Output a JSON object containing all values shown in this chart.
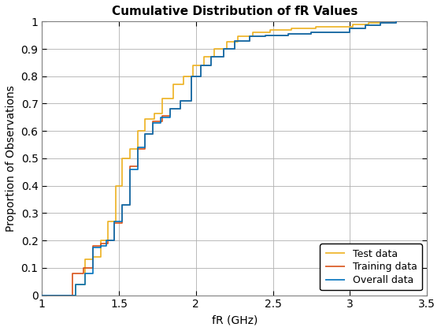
{
  "title": "Cumulative Distribution of fR Values",
  "xlabel": "fR (GHz)",
  "ylabel": "Proportion of Observations",
  "xlim": [
    1.0,
    3.5
  ],
  "ylim": [
    0.0,
    1.0
  ],
  "xticks": [
    1.0,
    1.5,
    2.0,
    2.5,
    3.0,
    3.5
  ],
  "xticklabels": [
    "1",
    "1.5",
    "2",
    "2.5",
    "3",
    "3.5"
  ],
  "yticks": [
    0.0,
    0.1,
    0.2,
    0.3,
    0.4,
    0.5,
    0.6,
    0.7,
    0.8,
    0.9,
    1.0
  ],
  "yticklabels": [
    "0",
    "0.1",
    "0.2",
    "0.3",
    "0.4",
    "0.5",
    "0.6",
    "0.7",
    "0.8",
    "0.9",
    "1"
  ],
  "overall_color": "#0072BD",
  "training_color": "#D95319",
  "test_color": "#EDB120",
  "legend_labels": [
    "Overall data",
    "Training data",
    "Test data"
  ],
  "overall_x": [
    1.0,
    1.22,
    1.22,
    1.28,
    1.28,
    1.33,
    1.33,
    1.38,
    1.38,
    1.42,
    1.42,
    1.47,
    1.47,
    1.52,
    1.52,
    1.57,
    1.57,
    1.62,
    1.62,
    1.67,
    1.67,
    1.72,
    1.72,
    1.77,
    1.77,
    1.83,
    1.83,
    1.9,
    1.9,
    1.97,
    1.97,
    2.03,
    2.03,
    2.1,
    2.1,
    2.18,
    2.18,
    2.25,
    2.25,
    2.35,
    2.35,
    2.45,
    2.45,
    2.6,
    2.6,
    2.75,
    2.75,
    3.0,
    3.0,
    3.1,
    3.1,
    3.2,
    3.2,
    3.3,
    3.3
  ],
  "overall_y": [
    0.0,
    0.0,
    0.04,
    0.04,
    0.08,
    0.08,
    0.175,
    0.175,
    0.18,
    0.18,
    0.2,
    0.2,
    0.27,
    0.27,
    0.33,
    0.33,
    0.46,
    0.46,
    0.54,
    0.54,
    0.59,
    0.59,
    0.63,
    0.63,
    0.65,
    0.65,
    0.68,
    0.68,
    0.71,
    0.71,
    0.8,
    0.8,
    0.84,
    0.84,
    0.87,
    0.87,
    0.9,
    0.9,
    0.93,
    0.93,
    0.945,
    0.945,
    0.95,
    0.95,
    0.955,
    0.955,
    0.96,
    0.96,
    0.975,
    0.975,
    0.985,
    0.985,
    0.995,
    0.995,
    1.0
  ],
  "training_x": [
    1.0,
    1.2,
    1.2,
    1.27,
    1.27,
    1.33,
    1.33,
    1.38,
    1.38,
    1.43,
    1.43,
    1.47,
    1.47,
    1.52,
    1.52,
    1.57,
    1.57,
    1.62,
    1.62,
    1.67,
    1.67,
    1.72,
    1.72,
    1.78,
    1.78,
    1.83,
    1.83,
    1.9,
    1.9,
    1.97,
    1.97,
    2.03,
    2.03,
    2.1,
    2.1,
    2.18,
    2.18,
    2.25,
    2.25,
    2.35,
    2.35,
    2.45,
    2.45,
    2.6,
    2.6,
    2.75,
    2.75,
    3.0,
    3.0,
    3.1,
    3.1,
    3.2,
    3.2,
    3.3,
    3.3
  ],
  "training_y": [
    0.0,
    0.0,
    0.08,
    0.08,
    0.1,
    0.1,
    0.18,
    0.18,
    0.19,
    0.19,
    0.2,
    0.2,
    0.265,
    0.265,
    0.33,
    0.33,
    0.47,
    0.47,
    0.535,
    0.535,
    0.59,
    0.59,
    0.635,
    0.635,
    0.655,
    0.655,
    0.68,
    0.68,
    0.71,
    0.71,
    0.8,
    0.8,
    0.84,
    0.84,
    0.87,
    0.87,
    0.9,
    0.9,
    0.93,
    0.93,
    0.945,
    0.945,
    0.95,
    0.95,
    0.955,
    0.955,
    0.96,
    0.96,
    0.975,
    0.975,
    0.985,
    0.985,
    0.995,
    0.995,
    1.0
  ],
  "test_x": [
    1.0,
    1.22,
    1.22,
    1.28,
    1.28,
    1.33,
    1.33,
    1.38,
    1.38,
    1.43,
    1.43,
    1.48,
    1.48,
    1.52,
    1.52,
    1.57,
    1.57,
    1.62,
    1.62,
    1.67,
    1.67,
    1.73,
    1.73,
    1.78,
    1.78,
    1.85,
    1.85,
    1.92,
    1.92,
    1.98,
    1.98,
    2.05,
    2.05,
    2.12,
    2.12,
    2.2,
    2.2,
    2.27,
    2.27,
    2.37,
    2.37,
    2.48,
    2.48,
    2.62,
    2.62,
    2.78,
    2.78,
    3.02,
    3.02,
    3.12,
    3.12,
    3.22,
    3.22,
    3.3,
    3.3
  ],
  "test_y": [
    0.0,
    0.0,
    0.04,
    0.04,
    0.13,
    0.13,
    0.14,
    0.14,
    0.2,
    0.2,
    0.27,
    0.27,
    0.4,
    0.4,
    0.5,
    0.5,
    0.535,
    0.535,
    0.6,
    0.6,
    0.645,
    0.645,
    0.665,
    0.665,
    0.72,
    0.72,
    0.77,
    0.77,
    0.8,
    0.8,
    0.84,
    0.84,
    0.87,
    0.87,
    0.9,
    0.9,
    0.925,
    0.925,
    0.945,
    0.945,
    0.96,
    0.96,
    0.97,
    0.97,
    0.975,
    0.975,
    0.98,
    0.98,
    0.99,
    0.99,
    0.995,
    0.995,
    1.0,
    1.0,
    1.0
  ],
  "background_color": "#ffffff",
  "grid_color": "#b0b0b0",
  "linewidth": 1.2,
  "title_fontsize": 11,
  "label_fontsize": 10,
  "tick_fontsize": 10
}
